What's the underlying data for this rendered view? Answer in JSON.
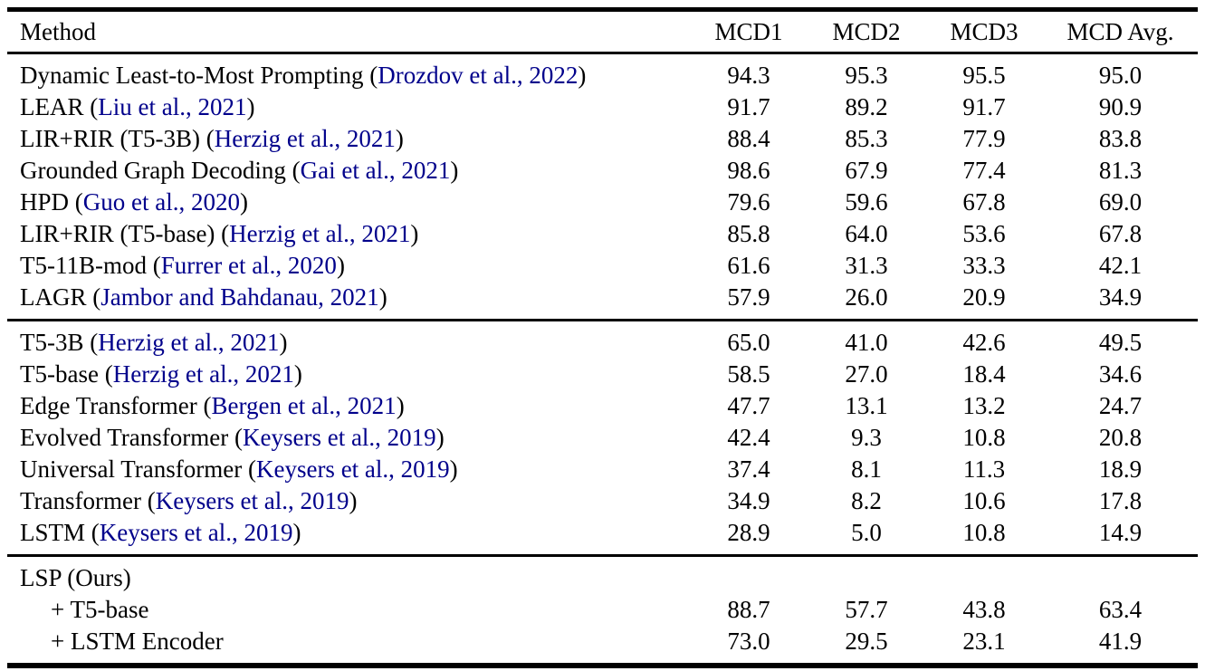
{
  "page": {
    "background": "#ffffff"
  },
  "colors": {
    "text": "#000000",
    "citation": "#00008B",
    "rule": "#000000"
  },
  "table": {
    "columns": [
      "Method",
      "MCD1",
      "MCD2",
      "MCD3",
      "MCD Avg."
    ],
    "paren_open": " (",
    "paren_close": ")",
    "groups": [
      {
        "rows": [
          {
            "method": "Dynamic Least-to-Most Prompting",
            "citation": "Drozdov et al., 2022",
            "indent": false,
            "values": [
              "94.3",
              "95.3",
              "95.5",
              "95.0"
            ]
          },
          {
            "method": "LEAR",
            "citation": "Liu et al., 2021",
            "indent": false,
            "values": [
              "91.7",
              "89.2",
              "91.7",
              "90.9"
            ]
          },
          {
            "method": "LIR+RIR (T5-3B)",
            "citation": "Herzig et al., 2021",
            "indent": false,
            "values": [
              "88.4",
              "85.3",
              "77.9",
              "83.8"
            ]
          },
          {
            "method": "Grounded Graph Decoding",
            "citation": "Gai et al., 2021",
            "indent": false,
            "values": [
              "98.6",
              "67.9",
              "77.4",
              "81.3"
            ]
          },
          {
            "method": "HPD",
            "citation": "Guo et al., 2020",
            "indent": false,
            "values": [
              "79.6",
              "59.6",
              "67.8",
              "69.0"
            ]
          },
          {
            "method": "LIR+RIR (T5-base)",
            "citation": "Herzig et al., 2021",
            "indent": false,
            "values": [
              "85.8",
              "64.0",
              "53.6",
              "67.8"
            ]
          },
          {
            "method": "T5-11B-mod",
            "citation": "Furrer et al., 2020",
            "indent": false,
            "values": [
              "61.6",
              "31.3",
              "33.3",
              "42.1"
            ]
          },
          {
            "method": "LAGR",
            "citation": "Jambor and Bahdanau, 2021",
            "indent": false,
            "values": [
              "57.9",
              "26.0",
              "20.9",
              "34.9"
            ]
          }
        ]
      },
      {
        "rows": [
          {
            "method": "T5-3B",
            "citation": "Herzig et al., 2021",
            "indent": false,
            "values": [
              "65.0",
              "41.0",
              "42.6",
              "49.5"
            ]
          },
          {
            "method": "T5-base",
            "citation": "Herzig et al., 2021",
            "indent": false,
            "values": [
              "58.5",
              "27.0",
              "18.4",
              "34.6"
            ]
          },
          {
            "method": "Edge Transformer",
            "citation": "Bergen et al., 2021",
            "indent": false,
            "values": [
              "47.7",
              "13.1",
              "13.2",
              "24.7"
            ]
          },
          {
            "method": "Evolved Transformer",
            "citation": "Keysers et al., 2019",
            "indent": false,
            "values": [
              "42.4",
              "9.3",
              "10.8",
              "20.8"
            ]
          },
          {
            "method": "Universal Transformer",
            "citation": "Keysers et al., 2019",
            "indent": false,
            "values": [
              "37.4",
              "8.1",
              "11.3",
              "18.9"
            ]
          },
          {
            "method": "Transformer",
            "citation": "Keysers et al., 2019",
            "indent": false,
            "values": [
              "34.9",
              "8.2",
              "10.6",
              "17.8"
            ]
          },
          {
            "method": "LSTM",
            "citation": "Keysers et al., 2019",
            "indent": false,
            "values": [
              "28.9",
              "5.0",
              "10.8",
              "14.9"
            ]
          }
        ]
      },
      {
        "rows": [
          {
            "method": "LSP (Ours)",
            "citation": null,
            "indent": false,
            "values": [
              "",
              "",
              "",
              ""
            ]
          },
          {
            "method": "+ T5-base",
            "citation": null,
            "indent": true,
            "values": [
              "88.7",
              "57.7",
              "43.8",
              "63.4"
            ]
          },
          {
            "method": "+ LSTM Encoder",
            "citation": null,
            "indent": true,
            "values": [
              "73.0",
              "29.5",
              "23.1",
              "41.9"
            ]
          }
        ]
      }
    ]
  }
}
